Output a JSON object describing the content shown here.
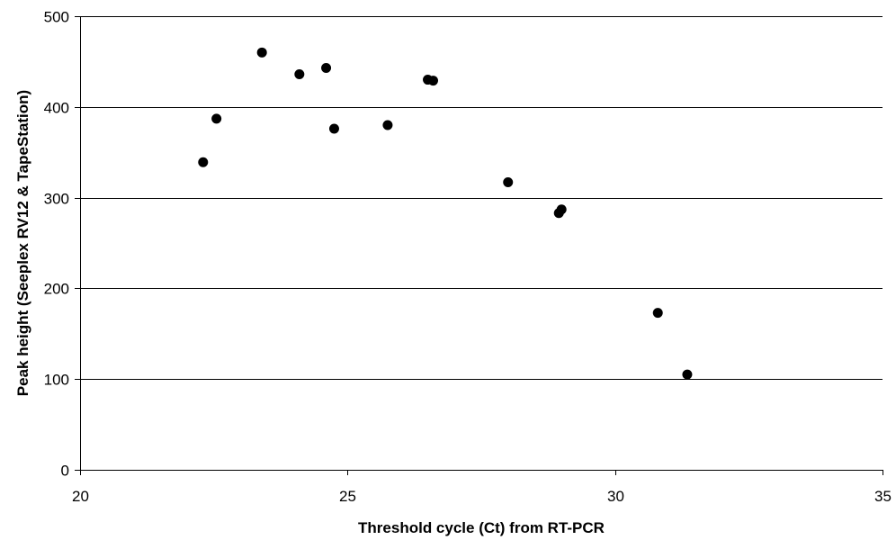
{
  "chart_data": {
    "type": "scatter",
    "title": "",
    "xlabel": "Threshold cycle (Ct) from RT-PCR",
    "ylabel": "Peak height (Seeplex RV12 & TapeStation)",
    "xlim": [
      20,
      35
    ],
    "ylim": [
      0,
      500
    ],
    "x_ticks": [
      20,
      25,
      30,
      35
    ],
    "y_ticks": [
      0,
      100,
      200,
      300,
      400,
      500
    ],
    "grid": "horizontal",
    "legend": "none",
    "marker_color": "#000000",
    "gridline_color": "#000000",
    "series": [
      {
        "points": [
          {
            "x": 22.3,
            "y": 339
          },
          {
            "x": 22.55,
            "y": 387
          },
          {
            "x": 23.4,
            "y": 460
          },
          {
            "x": 24.1,
            "y": 436
          },
          {
            "x": 24.6,
            "y": 443
          },
          {
            "x": 24.75,
            "y": 376
          },
          {
            "x": 25.75,
            "y": 380
          },
          {
            "x": 26.5,
            "y": 430
          },
          {
            "x": 26.6,
            "y": 429
          },
          {
            "x": 28.0,
            "y": 317
          },
          {
            "x": 28.95,
            "y": 283
          },
          {
            "x": 29.0,
            "y": 287
          },
          {
            "x": 30.8,
            "y": 173
          },
          {
            "x": 31.35,
            "y": 105
          }
        ]
      }
    ]
  }
}
